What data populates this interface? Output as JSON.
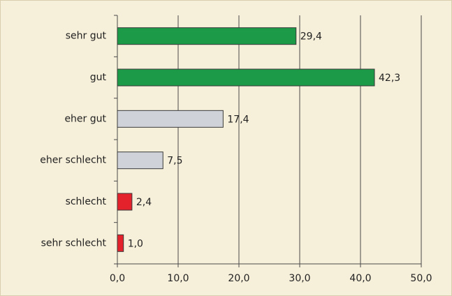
{
  "chart_data": {
    "type": "bar",
    "orientation": "horizontal",
    "categories": [
      "sehr gut",
      "gut",
      "eher gut",
      "eher schlecht",
      "schlecht",
      "sehr schlecht"
    ],
    "values": [
      29.4,
      42.3,
      17.4,
      7.5,
      2.4,
      1.0
    ],
    "value_labels": [
      "29,4",
      "42,3",
      "17,4",
      "7,5",
      "2,4",
      "1,0"
    ],
    "colors": [
      "#1c9a48",
      "#1c9a48",
      "#cfd2d8",
      "#cfd2d8",
      "#e3222b",
      "#e3222b"
    ],
    "xlim": [
      0,
      50
    ],
    "xticks": [
      {
        "value": 0,
        "label": "0,0"
      },
      {
        "value": 10,
        "label": "10,0"
      },
      {
        "value": 20,
        "label": "20,0"
      },
      {
        "value": 30,
        "label": "30,0"
      },
      {
        "value": 40,
        "label": "40,0"
      },
      {
        "value": 50,
        "label": "50,0"
      }
    ],
    "grid": true
  }
}
